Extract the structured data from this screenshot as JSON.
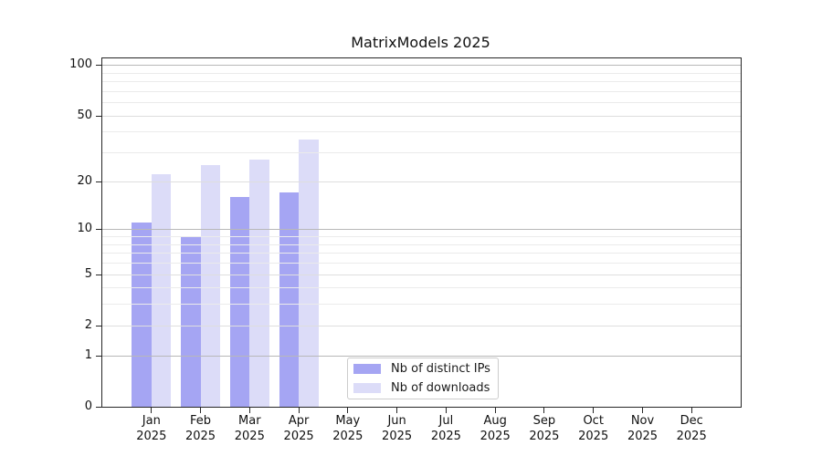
{
  "chart_data": {
    "type": "bar",
    "title": "MatrixModels 2025",
    "categories": [
      "Jan",
      "Feb",
      "Mar",
      "Apr",
      "May",
      "Jun",
      "Jul",
      "Aug",
      "Sep",
      "Oct",
      "Nov",
      "Dec"
    ],
    "year_label": "2025",
    "series": [
      {
        "name": "Nb of distinct IPs",
        "color": "#a5a5f3",
        "values": [
          11,
          9,
          16,
          17,
          null,
          null,
          null,
          null,
          null,
          null,
          null,
          null
        ]
      },
      {
        "name": "Nb of downloads",
        "color": "#dcdcf8",
        "values": [
          22,
          25,
          27,
          36,
          null,
          null,
          null,
          null,
          null,
          null,
          null,
          null
        ]
      }
    ],
    "yscale": "log10(1+v)",
    "yticks": [
      0,
      1,
      2,
      5,
      10,
      20,
      50,
      100
    ],
    "decade_lines": [
      1,
      10,
      100
    ],
    "minor_gridlines": [
      3,
      4,
      6,
      7,
      8,
      9,
      30,
      40,
      60,
      70,
      80,
      90
    ],
    "ylim": [
      0,
      110
    ],
    "grid": true,
    "legend_position": "bottom-center",
    "colors": {
      "grid_decade": "#b8b8b8",
      "grid_labeled": "#dedede",
      "grid_minor": "#ebebeb",
      "frame": "#262626"
    }
  }
}
